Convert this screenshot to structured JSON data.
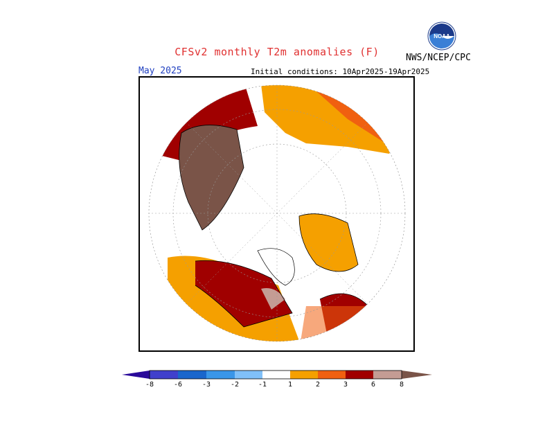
{
  "title": "CFSv2 monthly T2m anomalies (F)",
  "agency": "NWS/NCEP/CPC",
  "logo_text": "NOAA",
  "valid_month": "May 2025",
  "initial_conditions": "Initial conditions: 10Apr2025-19Apr2025",
  "colors": {
    "title": "#e03030",
    "month": "#2040c0",
    "c_m8": "#2a0a9a",
    "c_m6": "#4040cc",
    "c_m3": "#1a66cc",
    "c_m2": "#3a96e8",
    "c_m1": "#80c0f8",
    "c_0": "#ffffff",
    "c_1": "#f5a000",
    "c_2": "#f06010",
    "c_3": "#e03000",
    "c_6": "#a00000",
    "c_8": "#c49c94",
    "c_max": "#7a5448"
  },
  "colorbar_labels": [
    "-8",
    "-6",
    "-3",
    "-2",
    "-1",
    "1",
    "2",
    "3",
    "6",
    "8"
  ]
}
